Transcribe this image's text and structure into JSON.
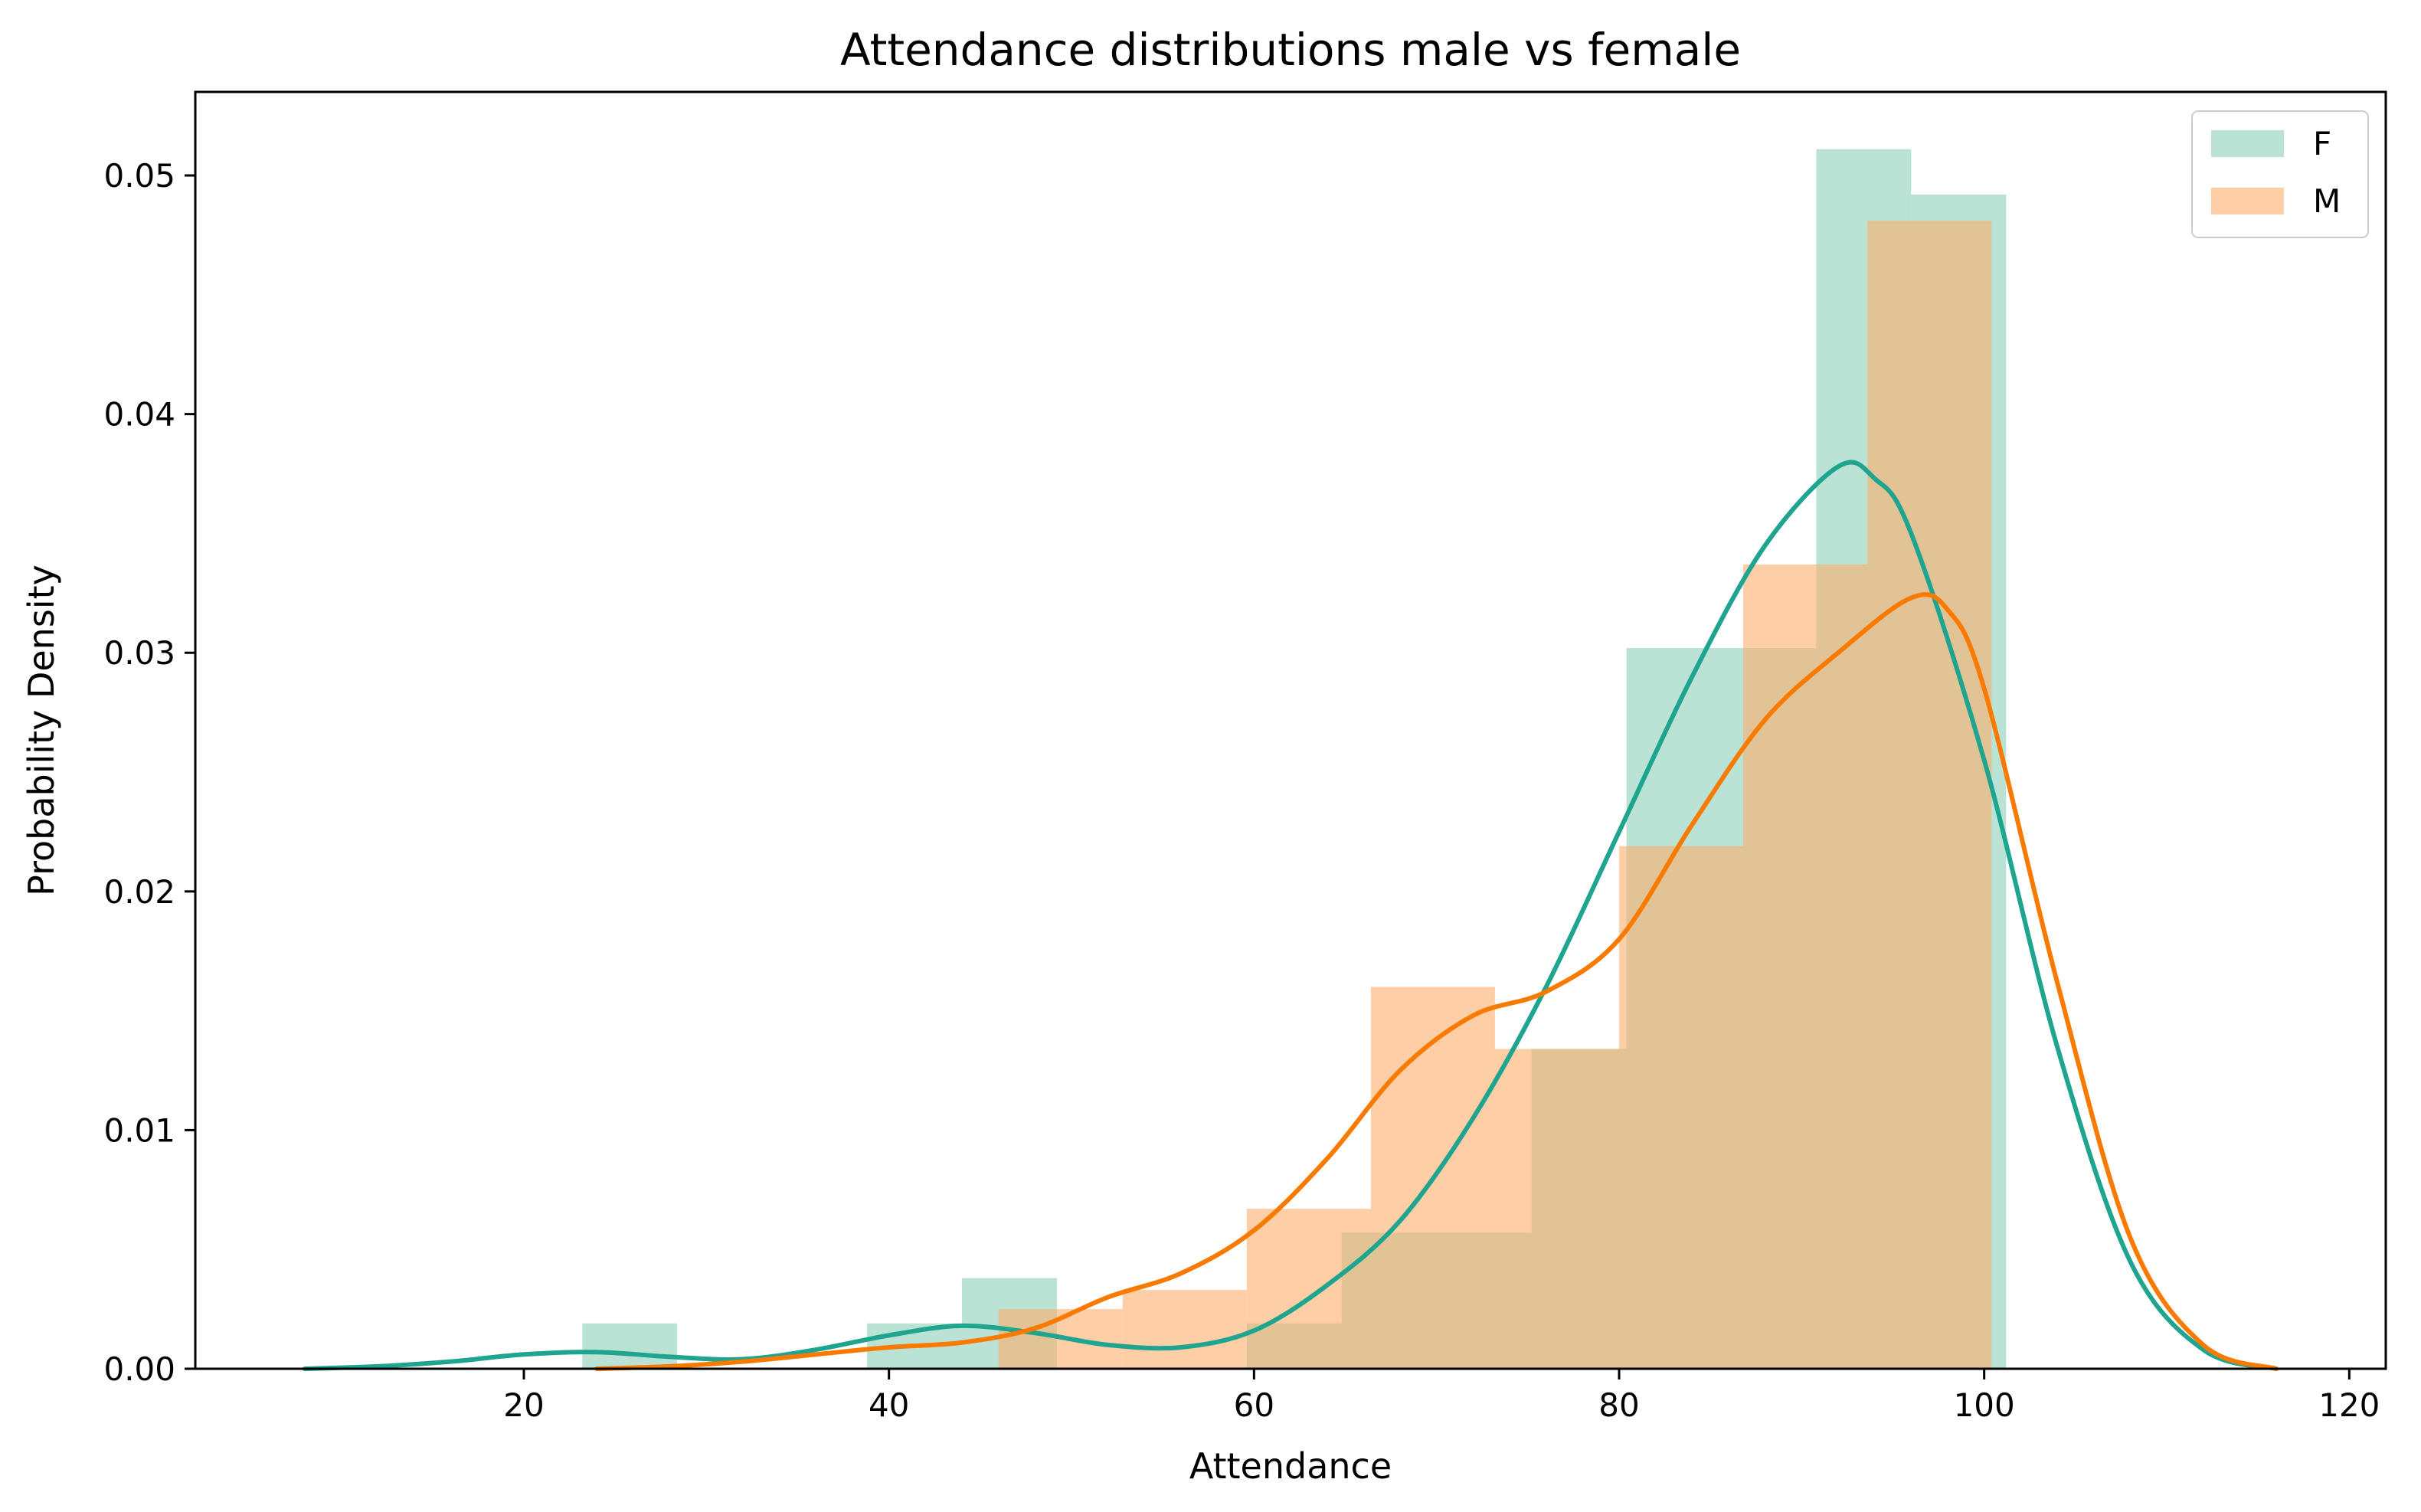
{
  "chart_data": {
    "type": "bar",
    "title": "Attendance distributions male vs female",
    "xlabel": "Attendance",
    "ylabel": "Probability Density",
    "xlim": [
      2,
      122
    ],
    "ylim": [
      0,
      0.0535
    ],
    "x_ticks": [
      20,
      40,
      60,
      80,
      100,
      120
    ],
    "y_ticks": [
      0.0,
      0.01,
      0.02,
      0.03,
      0.04,
      0.05
    ],
    "x_tick_labels": [
      "20",
      "40",
      "60",
      "80",
      "100",
      "120"
    ],
    "y_tick_labels": [
      "0.00",
      "0.01",
      "0.02",
      "0.03",
      "0.04",
      "0.05"
    ],
    "grid": false,
    "legend_position": "top-right",
    "series": [
      {
        "name": "F",
        "histogram_color": "#66c2a5",
        "histogram_opacity": 0.45,
        "kde_color": "#1fa58f",
        "bins": [
          {
            "x0": 23.2,
            "x1": 28.4,
            "density": 0.0019
          },
          {
            "x0": 28.4,
            "x1": 33.6,
            "density": 0.0
          },
          {
            "x0": 33.6,
            "x1": 38.8,
            "density": 0.0
          },
          {
            "x0": 38.8,
            "x1": 44.0,
            "density": 0.0019
          },
          {
            "x0": 44.0,
            "x1": 49.2,
            "density": 0.0038
          },
          {
            "x0": 49.2,
            "x1": 54.4,
            "density": 0.0
          },
          {
            "x0": 54.4,
            "x1": 59.6,
            "density": 0.0
          },
          {
            "x0": 59.6,
            "x1": 64.8,
            "density": 0.0019
          },
          {
            "x0": 64.8,
            "x1": 70.0,
            "density": 0.0057
          },
          {
            "x0": 70.0,
            "x1": 75.2,
            "density": 0.0057
          },
          {
            "x0": 75.2,
            "x1": 80.4,
            "density": 0.0134
          },
          {
            "x0": 80.4,
            "x1": 85.6,
            "density": 0.0302
          },
          {
            "x0": 85.6,
            "x1": 90.8,
            "density": 0.0302
          },
          {
            "x0": 90.8,
            "x1": 96.0,
            "density": 0.0511
          },
          {
            "x0": 96.0,
            "x1": 101.2,
            "density": 0.0492
          }
        ],
        "kde": {
          "x": [
            8,
            12,
            16,
            20,
            24,
            28,
            32,
            36,
            40,
            44,
            48,
            52,
            56,
            60,
            64,
            68,
            72,
            76,
            80,
            84,
            88,
            92,
            94,
            96,
            100,
            104,
            108,
            112,
            116
          ],
          "y": [
            0.0,
            0.0001,
            0.0003,
            0.0006,
            0.0007,
            0.0005,
            0.0004,
            0.0008,
            0.0014,
            0.0018,
            0.0015,
            0.001,
            0.0009,
            0.0016,
            0.0035,
            0.0062,
            0.0105,
            0.016,
            0.0225,
            0.029,
            0.0345,
            0.0378,
            0.0373,
            0.035,
            0.0255,
            0.0135,
            0.0045,
            0.0008,
            0.0
          ]
        }
      },
      {
        "name": "M",
        "histogram_color": "#fdae6b",
        "histogram_opacity": 0.6,
        "kde_color": "#f97a00",
        "bins": [
          {
            "x0": 46.0,
            "x1": 52.8,
            "density": 0.0025
          },
          {
            "x0": 52.8,
            "x1": 59.6,
            "density": 0.0033
          },
          {
            "x0": 59.6,
            "x1": 66.4,
            "density": 0.0067
          },
          {
            "x0": 66.4,
            "x1": 73.2,
            "density": 0.016
          },
          {
            "x0": 73.2,
            "x1": 80.0,
            "density": 0.0134
          },
          {
            "x0": 80.0,
            "x1": 86.8,
            "density": 0.0219
          },
          {
            "x0": 86.8,
            "x1": 93.6,
            "density": 0.0337
          },
          {
            "x0": 93.6,
            "x1": 100.4,
            "density": 0.0481
          }
        ],
        "kde": {
          "x": [
            24,
            28,
            32,
            36,
            40,
            44,
            48,
            52,
            56,
            60,
            64,
            68,
            72,
            76,
            80,
            84,
            88,
            92,
            96,
            98,
            100,
            104,
            108,
            112,
            116
          ],
          "y": [
            0.0,
            0.0001,
            0.0003,
            0.0006,
            0.0009,
            0.0011,
            0.0017,
            0.003,
            0.004,
            0.0058,
            0.0088,
            0.0125,
            0.0148,
            0.0158,
            0.018,
            0.0228,
            0.0272,
            0.03,
            0.0323,
            0.0318,
            0.0285,
            0.0162,
            0.0055,
            0.001,
            0.0
          ]
        }
      }
    ]
  }
}
